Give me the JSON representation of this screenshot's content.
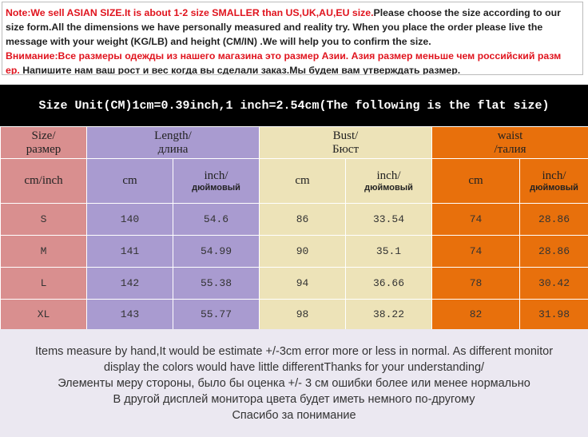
{
  "note": {
    "lines": [
      [
        {
          "text": "Note:We sell ASIAN SIZE.It is about 1-2 size SMALLER than US,UK,AU,EU size.",
          "color": "#e0141e"
        },
        {
          "text": "Please choose the size according to our",
          "color": "#222222"
        }
      ],
      [
        {
          "text": "size form.All  the dimensions we have personally measured and reality try. When you place the order please live the",
          "color": "#222222"
        }
      ],
      [
        {
          "text": "message with your weight (KG/LB) and height (CM/IN) .We will help you to confirm the size.",
          "color": "#222222"
        }
      ],
      [
        {
          "text": "Внимание:Все размеры одежды из нашего магазина это размер Азии. Азия размер меньше чем российский  разм",
          "color": "#e0141e"
        }
      ],
      [
        {
          "text": "ер.",
          "color": "#e0141e"
        },
        {
          "text": " Напишите нам ваш рост и вес когда вы сделали заказ.Мы будем вам утверждать размер.",
          "color": "#222222"
        }
      ]
    ]
  },
  "banner": "Size Unit(CM)1cm=0.39inch,1 inch=2.54cm(The following is the flat size)",
  "table": {
    "header": [
      [
        "Size/",
        "размер"
      ],
      [
        "Length/",
        "длина"
      ],
      [
        "Bust/",
        "Бюст"
      ],
      [
        "waist",
        "/талия"
      ]
    ],
    "subheader": [
      [
        "cm/inch"
      ],
      [
        "cm"
      ],
      [
        "inch/",
        "дюймовый"
      ],
      [
        "cm"
      ],
      [
        "inch/",
        "дюймовый"
      ],
      [
        "cm"
      ],
      [
        "inch/",
        "дюймовый"
      ]
    ],
    "group_colors": [
      "#d98f8f",
      "#a99bd0",
      "#ede3b8",
      "#e8700c"
    ],
    "rows": [
      [
        "S",
        "140",
        "54.6",
        "86",
        "33.54",
        "74",
        "28.86"
      ],
      [
        "M",
        "141",
        "54.99",
        "90",
        "35.1",
        "74",
        "28.86"
      ],
      [
        "L",
        "142",
        "55.38",
        "94",
        "36.66",
        "78",
        "30.42"
      ],
      [
        "XL",
        "143",
        "55.77",
        "98",
        "38.22",
        "82",
        "31.98"
      ]
    ]
  },
  "footer": [
    "Items measure by hand,It would be estimate +/-3cm error more or less in normal. As different monitor",
    "display the colors would have little differentThanks for your understanding/",
    "Элементы меру стороны, было бы оценка +/- 3 см ошибки более или менее нормально",
    "В другой дисплей монитора цвета будет иметь немного по-другому",
    "Спасибо за понимание"
  ]
}
